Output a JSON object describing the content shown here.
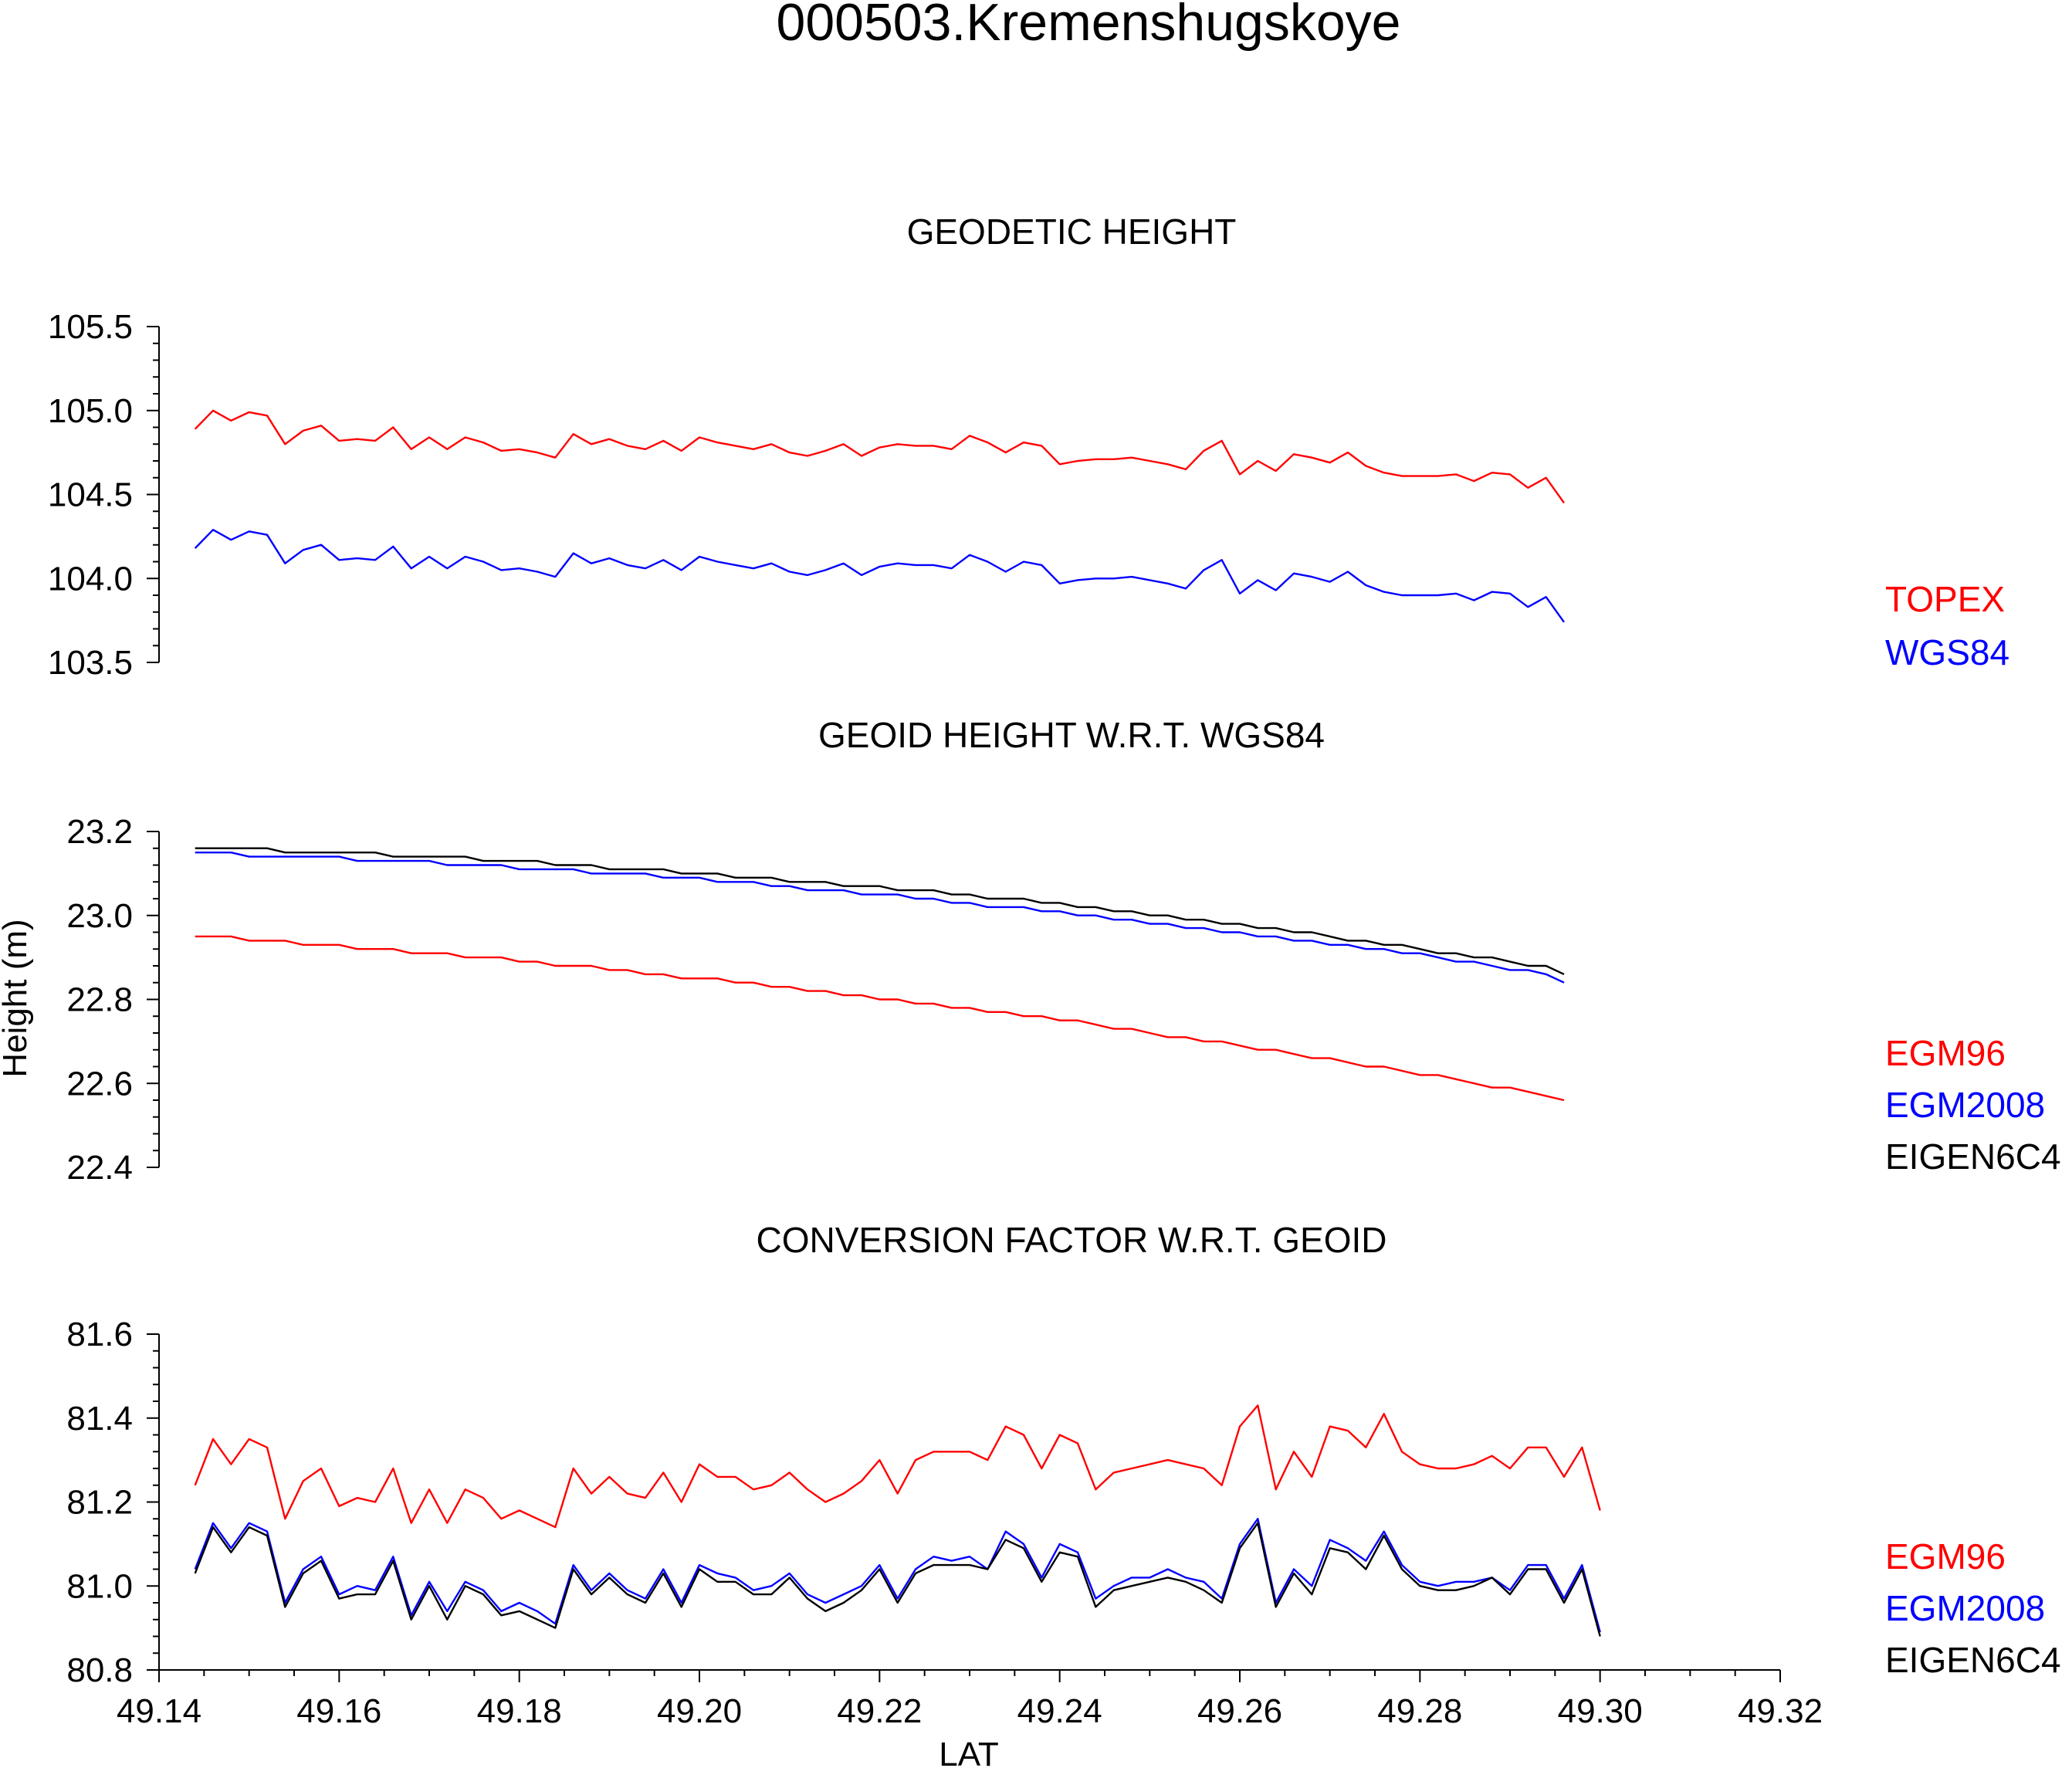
{
  "title": "000503.Kremenshugskoye",
  "x_axis": {
    "label": "LAT",
    "range": [
      49.14,
      49.32
    ],
    "ticks": [
      49.14,
      49.16,
      49.18,
      49.2,
      49.22,
      49.24,
      49.26,
      49.28,
      49.3,
      49.32
    ],
    "tick_labels": [
      "49.14",
      "49.16",
      "49.18",
      "49.20",
      "49.22",
      "49.24",
      "49.26",
      "49.28",
      "49.30",
      "49.32"
    ]
  },
  "y_axis_label": "Height (m)",
  "colors": {
    "red": "#ff0000",
    "blue": "#0000ff",
    "black": "#000000"
  },
  "chart_data": [
    {
      "type": "line",
      "title": "GEODETIC HEIGHT",
      "ylim": [
        103.5,
        105.5
      ],
      "yticks": [
        "105.5",
        "105.0",
        "104.5",
        "104.0",
        "103.5"
      ],
      "x_start": 49.144,
      "x_step": 0.002,
      "series": [
        {
          "name": "TOPEX",
          "color": "#ff0000",
          "values": [
            104.89,
            105.0,
            104.94,
            104.99,
            104.97,
            104.8,
            104.88,
            104.91,
            104.82,
            104.83,
            104.82,
            104.9,
            104.77,
            104.84,
            104.77,
            104.84,
            104.81,
            104.76,
            104.77,
            104.75,
            104.72,
            104.86,
            104.8,
            104.83,
            104.79,
            104.77,
            104.82,
            104.76,
            104.84,
            104.81,
            104.79,
            104.77,
            104.8,
            104.75,
            104.73,
            104.76,
            104.8,
            104.73,
            104.78,
            104.8,
            104.79,
            104.79,
            104.77,
            104.85,
            104.81,
            104.75,
            104.81,
            104.79,
            104.68,
            104.7,
            104.71,
            104.71,
            104.72,
            104.7,
            104.68,
            104.65,
            104.76,
            104.82,
            104.62,
            104.7,
            104.64,
            104.74,
            104.72,
            104.69,
            104.75,
            104.67,
            104.63,
            104.61,
            104.61,
            104.61,
            104.62,
            104.58,
            104.63,
            104.62,
            104.54,
            104.6,
            104.45
          ]
        },
        {
          "name": "WGS84",
          "color": "#0000ff",
          "values": [
            104.18,
            104.29,
            104.23,
            104.28,
            104.26,
            104.09,
            104.17,
            104.2,
            104.11,
            104.12,
            104.11,
            104.19,
            104.06,
            104.13,
            104.06,
            104.13,
            104.1,
            104.05,
            104.06,
            104.04,
            104.01,
            104.15,
            104.09,
            104.12,
            104.08,
            104.06,
            104.11,
            104.05,
            104.13,
            104.1,
            104.08,
            104.06,
            104.09,
            104.04,
            104.02,
            104.05,
            104.09,
            104.02,
            104.07,
            104.09,
            104.08,
            104.08,
            104.06,
            104.14,
            104.1,
            104.04,
            104.1,
            104.08,
            103.97,
            103.99,
            104.0,
            104.0,
            104.01,
            103.99,
            103.97,
            103.94,
            104.05,
            104.11,
            103.91,
            103.99,
            103.93,
            104.03,
            104.01,
            103.98,
            104.04,
            103.96,
            103.92,
            103.9,
            103.9,
            103.9,
            103.91,
            103.87,
            103.92,
            103.91,
            103.83,
            103.89,
            103.74
          ]
        }
      ]
    },
    {
      "type": "line",
      "title": "GEOID HEIGHT W.R.T. WGS84",
      "ylim": [
        22.4,
        23.2
      ],
      "yticks": [
        "23.2",
        "23.0",
        "22.8",
        "22.6",
        "22.4"
      ],
      "x_start": 49.144,
      "x_step": 0.002,
      "series": [
        {
          "name": "EGM96",
          "color": "#ff0000",
          "values": [
            22.95,
            22.95,
            22.95,
            22.94,
            22.94,
            22.94,
            22.93,
            22.93,
            22.93,
            22.92,
            22.92,
            22.92,
            22.91,
            22.91,
            22.91,
            22.9,
            22.9,
            22.9,
            22.89,
            22.89,
            22.88,
            22.88,
            22.88,
            22.87,
            22.87,
            22.86,
            22.86,
            22.85,
            22.85,
            22.85,
            22.84,
            22.84,
            22.83,
            22.83,
            22.82,
            22.82,
            22.81,
            22.81,
            22.8,
            22.8,
            22.79,
            22.79,
            22.78,
            22.78,
            22.77,
            22.77,
            22.76,
            22.76,
            22.75,
            22.75,
            22.74,
            22.73,
            22.73,
            22.72,
            22.71,
            22.71,
            22.7,
            22.7,
            22.69,
            22.68,
            22.68,
            22.67,
            22.66,
            22.66,
            22.65,
            22.64,
            22.64,
            22.63,
            22.62,
            22.62,
            22.61,
            22.6,
            22.59,
            22.59,
            22.58,
            22.57,
            22.56
          ]
        },
        {
          "name": "EGM2008",
          "color": "#0000ff",
          "values": [
            23.15,
            23.15,
            23.15,
            23.14,
            23.14,
            23.14,
            23.14,
            23.14,
            23.14,
            23.13,
            23.13,
            23.13,
            23.13,
            23.13,
            23.12,
            23.12,
            23.12,
            23.12,
            23.11,
            23.11,
            23.11,
            23.11,
            23.1,
            23.1,
            23.1,
            23.1,
            23.09,
            23.09,
            23.09,
            23.08,
            23.08,
            23.08,
            23.07,
            23.07,
            23.06,
            23.06,
            23.06,
            23.05,
            23.05,
            23.05,
            23.04,
            23.04,
            23.03,
            23.03,
            23.02,
            23.02,
            23.02,
            23.01,
            23.01,
            23.0,
            23.0,
            22.99,
            22.99,
            22.98,
            22.98,
            22.97,
            22.97,
            22.96,
            22.96,
            22.95,
            22.95,
            22.94,
            22.94,
            22.93,
            22.93,
            22.92,
            22.92,
            22.91,
            22.91,
            22.9,
            22.89,
            22.89,
            22.88,
            22.87,
            22.87,
            22.86,
            22.84
          ]
        },
        {
          "name": "EIGEN6C4",
          "color": "#000000",
          "values": [
            23.16,
            23.16,
            23.16,
            23.16,
            23.16,
            23.15,
            23.15,
            23.15,
            23.15,
            23.15,
            23.15,
            23.14,
            23.14,
            23.14,
            23.14,
            23.14,
            23.13,
            23.13,
            23.13,
            23.13,
            23.12,
            23.12,
            23.12,
            23.11,
            23.11,
            23.11,
            23.11,
            23.1,
            23.1,
            23.1,
            23.09,
            23.09,
            23.09,
            23.08,
            23.08,
            23.08,
            23.07,
            23.07,
            23.07,
            23.06,
            23.06,
            23.06,
            23.05,
            23.05,
            23.04,
            23.04,
            23.04,
            23.03,
            23.03,
            23.02,
            23.02,
            23.01,
            23.01,
            23.0,
            23.0,
            22.99,
            22.99,
            22.98,
            22.98,
            22.97,
            22.97,
            22.96,
            22.96,
            22.95,
            22.94,
            22.94,
            22.93,
            22.93,
            22.92,
            22.91,
            22.91,
            22.9,
            22.9,
            22.89,
            22.88,
            22.88,
            22.86
          ]
        }
      ]
    },
    {
      "type": "line",
      "title": "CONVERSION FACTOR W.R.T. GEOID",
      "ylim": [
        80.8,
        81.6
      ],
      "yticks": [
        "81.6",
        "81.4",
        "81.2",
        "81.0",
        "80.8"
      ],
      "x_start": 49.144,
      "x_step": 0.002,
      "series": [
        {
          "name": "EGM96",
          "color": "#ff0000",
          "values": [
            81.24,
            81.35,
            81.29,
            81.35,
            81.33,
            81.16,
            81.25,
            81.28,
            81.19,
            81.21,
            81.2,
            81.28,
            81.15,
            81.23,
            81.15,
            81.23,
            81.21,
            81.16,
            81.18,
            81.16,
            81.14,
            81.28,
            81.22,
            81.26,
            81.22,
            81.21,
            81.27,
            81.2,
            81.29,
            81.26,
            81.26,
            81.23,
            81.24,
            81.27,
            81.23,
            81.2,
            81.22,
            81.25,
            81.3,
            81.22,
            81.3,
            81.32,
            81.32,
            81.32,
            81.3,
            81.38,
            81.36,
            81.28,
            81.36,
            81.34,
            81.23,
            81.27,
            81.28,
            81.29,
            81.3,
            81.29,
            81.28,
            81.24,
            81.38,
            81.43,
            81.23,
            81.32,
            81.26,
            81.38,
            81.37,
            81.33,
            81.41,
            81.32,
            81.29,
            81.28,
            81.28,
            81.29,
            81.31,
            81.28,
            81.33,
            81.33,
            81.26,
            81.33,
            81.18
          ]
        },
        {
          "name": "EGM2008",
          "color": "#0000ff",
          "values": [
            81.04,
            81.15,
            81.09,
            81.15,
            81.13,
            80.96,
            81.04,
            81.07,
            80.98,
            81.0,
            80.99,
            81.07,
            80.93,
            81.01,
            80.94,
            81.01,
            80.99,
            80.94,
            80.96,
            80.94,
            80.91,
            81.05,
            80.99,
            81.03,
            80.99,
            80.97,
            81.04,
            80.96,
            81.05,
            81.03,
            81.02,
            80.99,
            81.0,
            81.03,
            80.98,
            80.96,
            80.98,
            81.0,
            81.05,
            80.97,
            81.04,
            81.07,
            81.06,
            81.07,
            81.04,
            81.13,
            81.1,
            81.02,
            81.1,
            81.08,
            80.97,
            81.0,
            81.02,
            81.02,
            81.04,
            81.02,
            81.01,
            80.97,
            81.1,
            81.16,
            80.96,
            81.04,
            81.0,
            81.11,
            81.09,
            81.06,
            81.13,
            81.05,
            81.01,
            81.0,
            81.01,
            81.01,
            81.02,
            80.99,
            81.05,
            81.05,
            80.97,
            81.05,
            80.89
          ]
        },
        {
          "name": "EIGEN6C4",
          "color": "#000000",
          "values": [
            81.03,
            81.14,
            81.08,
            81.14,
            81.12,
            80.95,
            81.03,
            81.06,
            80.97,
            80.98,
            80.98,
            81.06,
            80.92,
            81.0,
            80.92,
            81.0,
            80.98,
            80.93,
            80.94,
            80.92,
            80.9,
            81.04,
            80.98,
            81.02,
            80.98,
            80.96,
            81.03,
            80.95,
            81.04,
            81.01,
            81.01,
            80.98,
            80.98,
            81.02,
            80.97,
            80.94,
            80.96,
            80.99,
            81.04,
            80.96,
            81.03,
            81.05,
            81.05,
            81.05,
            81.04,
            81.11,
            81.09,
            81.01,
            81.08,
            81.07,
            80.95,
            80.99,
            81.0,
            81.01,
            81.02,
            81.01,
            80.99,
            80.96,
            81.09,
            81.15,
            80.95,
            81.03,
            80.98,
            81.09,
            81.08,
            81.04,
            81.12,
            81.04,
            81.0,
            80.99,
            80.99,
            81.0,
            81.02,
            80.98,
            81.04,
            81.04,
            80.96,
            81.04,
            80.88
          ]
        }
      ]
    }
  ]
}
